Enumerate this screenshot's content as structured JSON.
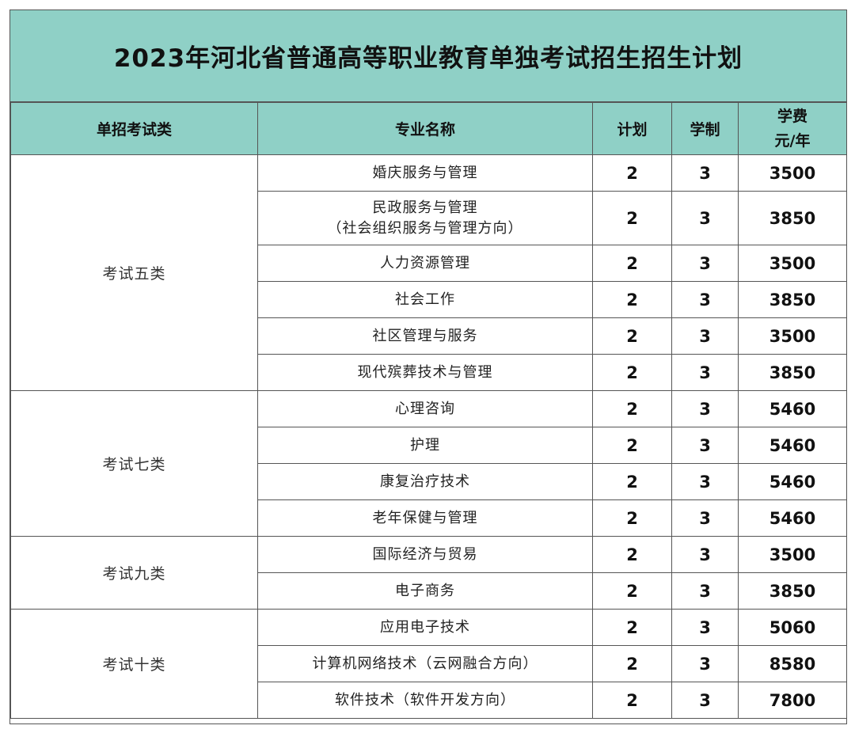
{
  "title": "2023年河北省普通高等职业教育单独考试招生招生计划",
  "colors": {
    "header_bg": "#8fd0c6",
    "border": "#555555"
  },
  "headers": {
    "category": "单招考试类",
    "major": "专业名称",
    "plan": "计划",
    "duration": "学制",
    "fee_line1": "学费",
    "fee_line2": "元/年"
  },
  "groups": [
    {
      "category": "考试五类",
      "rows": [
        {
          "major": "婚庆服务与管理",
          "plan": "2",
          "duration": "3",
          "fee": "3500"
        },
        {
          "major": "民政服务与管理",
          "major_sub": "（社会组织服务与管理方向）",
          "plan": "2",
          "duration": "3",
          "fee": "3850"
        },
        {
          "major": "人力资源管理",
          "plan": "2",
          "duration": "3",
          "fee": "3500"
        },
        {
          "major": "社会工作",
          "plan": "2",
          "duration": "3",
          "fee": "3850"
        },
        {
          "major": "社区管理与服务",
          "plan": "2",
          "duration": "3",
          "fee": "3500"
        },
        {
          "major": "现代殡葬技术与管理",
          "plan": "2",
          "duration": "3",
          "fee": "3850"
        }
      ]
    },
    {
      "category": "考试七类",
      "rows": [
        {
          "major": "心理咨询",
          "plan": "2",
          "duration": "3",
          "fee": "5460"
        },
        {
          "major": "护理",
          "plan": "2",
          "duration": "3",
          "fee": "5460"
        },
        {
          "major": "康复治疗技术",
          "plan": "2",
          "duration": "3",
          "fee": "5460"
        },
        {
          "major": "老年保健与管理",
          "plan": "2",
          "duration": "3",
          "fee": "5460"
        }
      ]
    },
    {
      "category": "考试九类",
      "rows": [
        {
          "major": "国际经济与贸易",
          "plan": "2",
          "duration": "3",
          "fee": "3500"
        },
        {
          "major": "电子商务",
          "plan": "2",
          "duration": "3",
          "fee": "3850"
        }
      ]
    },
    {
      "category": "考试十类",
      "rows": [
        {
          "major": "应用电子技术",
          "plan": "2",
          "duration": "3",
          "fee": "5060"
        },
        {
          "major": "计算机网络技术（云网融合方向）",
          "plan": "2",
          "duration": "3",
          "fee": "8580"
        },
        {
          "major": "软件技术（软件开发方向）",
          "plan": "2",
          "duration": "3",
          "fee": "7800"
        }
      ]
    }
  ]
}
